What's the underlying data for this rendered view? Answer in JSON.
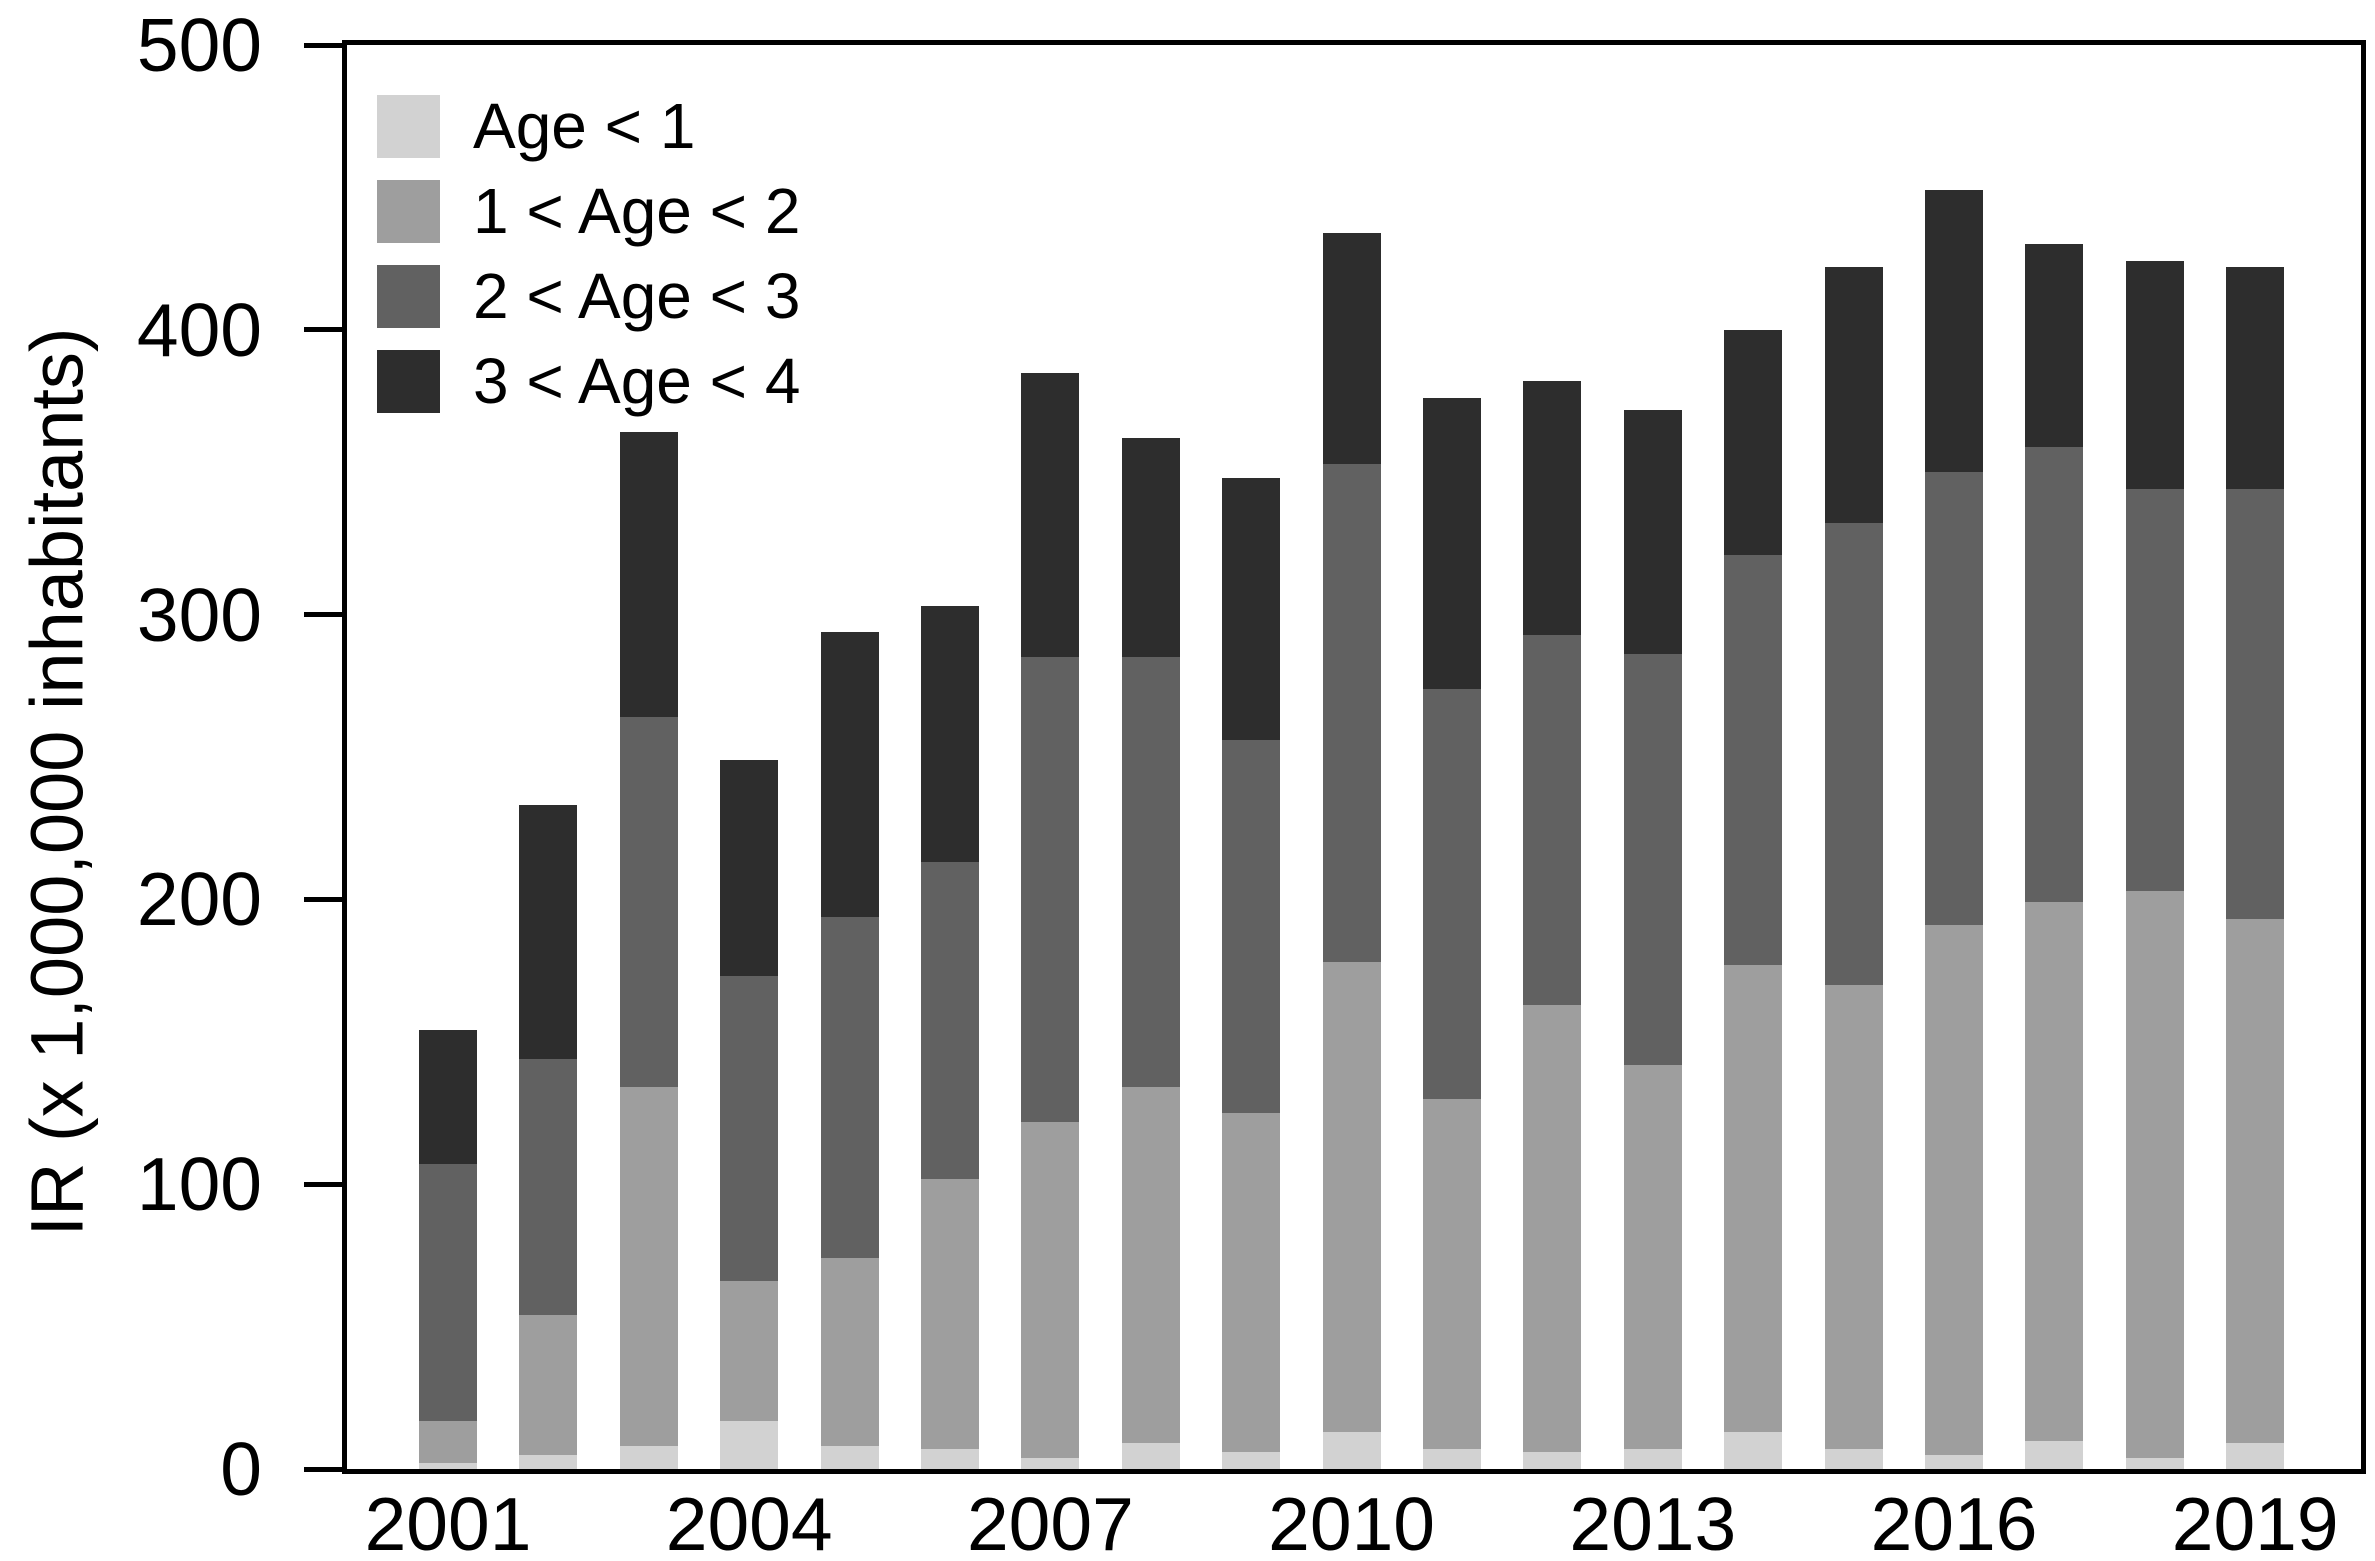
{
  "chart_data": {
    "type": "bar",
    "stacked": true,
    "title": "",
    "xlabel": "",
    "ylabel": "IR (x 1,000,000 inhabitants)",
    "ylim": [
      0,
      500
    ],
    "yticks": [
      0,
      100,
      200,
      300,
      400,
      500
    ],
    "grid": false,
    "legend_position": "top-left",
    "categories": [
      "2001",
      "2002",
      "2003",
      "2004",
      "2005",
      "2006",
      "2007",
      "2008",
      "2009",
      "2010",
      "2011",
      "2012",
      "2013",
      "2014",
      "2015",
      "2016",
      "2017",
      "2018",
      "2019"
    ],
    "xtick_labels": [
      "2001",
      "2004",
      "2007",
      "2010",
      "2013",
      "2016",
      "2019"
    ],
    "series": [
      {
        "name": "Age < 1",
        "color": "#d2d2d2",
        "values": [
          2,
          5,
          8,
          17,
          8,
          7,
          4,
          9,
          6,
          13,
          7,
          6,
          7,
          13,
          7,
          5,
          10,
          4,
          9
        ]
      },
      {
        "name": "1 < Age < 2",
        "color": "#9e9e9e",
        "values": [
          15,
          49,
          126,
          49,
          66,
          95,
          118,
          125,
          119,
          165,
          123,
          157,
          135,
          164,
          163,
          186,
          189,
          199,
          184
        ]
      },
      {
        "name": "2 < Age < 3",
        "color": "#616161",
        "values": [
          90,
          90,
          130,
          107,
          120,
          111,
          163,
          151,
          131,
          175,
          144,
          130,
          144,
          144,
          162,
          159,
          160,
          141,
          151
        ]
      },
      {
        "name": "3 < Age < 4",
        "color": "#2d2d2d",
        "values": [
          47,
          89,
          100,
          76,
          100,
          90,
          100,
          77,
          92,
          81,
          102,
          89,
          86,
          79,
          90,
          99,
          71,
          80,
          78
        ]
      }
    ],
    "totals": [
      154,
      233,
      364,
      249,
      294,
      303,
      385,
      362,
      348,
      434,
      376,
      382,
      372,
      400,
      422,
      449,
      430,
      424,
      422
    ]
  }
}
